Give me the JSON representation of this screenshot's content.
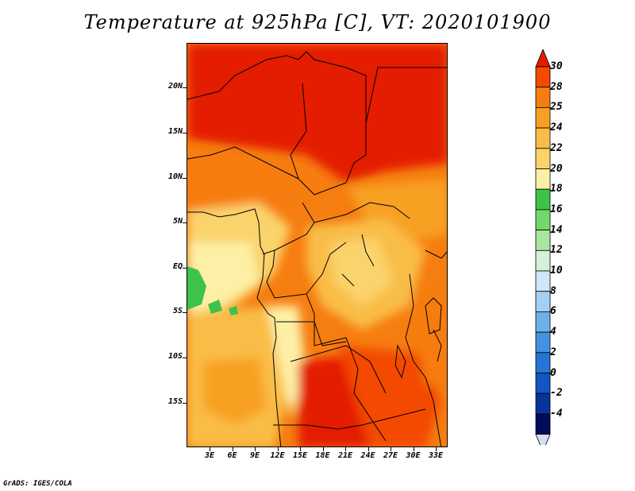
{
  "title": "Temperature at 925hPa [C], VT: 2020101900",
  "footer": "GrADS: IGES/COLA",
  "map": {
    "lat_labels": [
      "20N",
      "15N",
      "10N",
      "5N",
      "EQ",
      "5S",
      "10S",
      "15S"
    ],
    "lon_labels": [
      "3E",
      "6E",
      "9E",
      "12E",
      "15E",
      "18E",
      "21E",
      "24E",
      "27E",
      "30E",
      "33E"
    ]
  },
  "colorbar": {
    "labels": [
      "30",
      "28",
      "25",
      "24",
      "22",
      "20",
      "18",
      "16",
      "14",
      "12",
      "10",
      "8",
      "6",
      "4",
      "2",
      "0",
      "-2",
      "-4"
    ],
    "colors": [
      "#e41a00",
      "#f34a00",
      "#f67d10",
      "#f8a024",
      "#f9bd47",
      "#fbd36c",
      "#fdf0a6",
      "#3ec24a",
      "#72d86a",
      "#a9e6a0",
      "#d6f1d6",
      "#cfe7f9",
      "#a5cff3",
      "#6eb1ea",
      "#4591e1",
      "#2574d6",
      "#1156c2",
      "#08339a",
      "#000c5a",
      "#d7dcf0"
    ]
  }
}
